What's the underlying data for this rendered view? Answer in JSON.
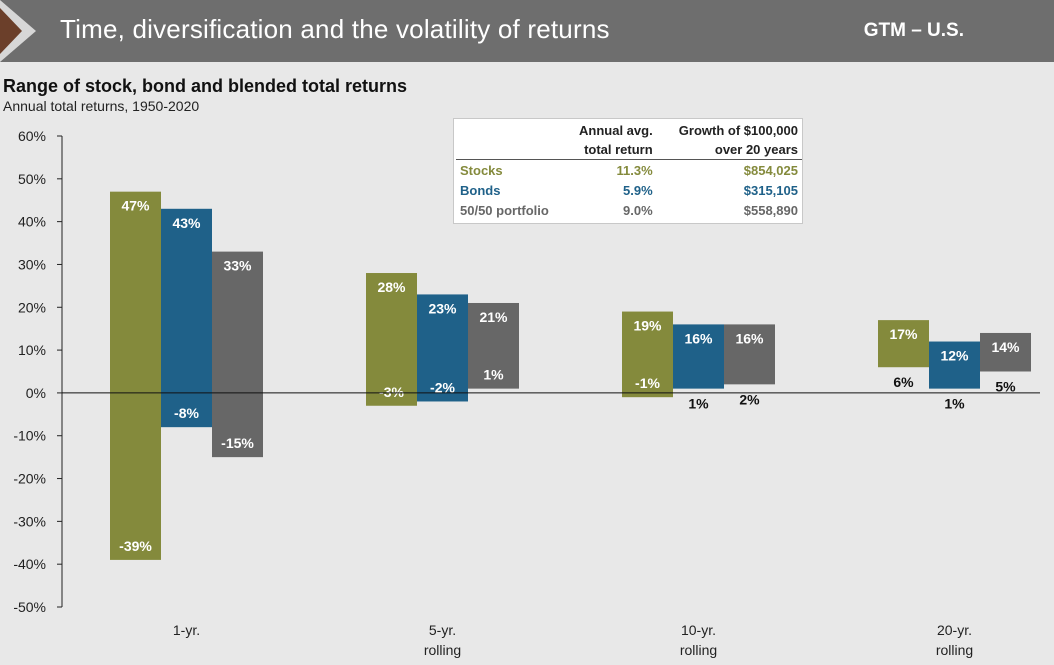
{
  "header": {
    "title": "Time, diversification and the volatility of returns",
    "tag": "GTM – U.S."
  },
  "colors": {
    "stocks": "#848a3c",
    "bonds": "#1f6189",
    "blend": "#676767"
  },
  "legend_table": {
    "col_headers": [
      [
        "Annual avg.",
        "total return"
      ],
      [
        "Growth of $100,000",
        "over 20 years"
      ]
    ],
    "rows": [
      {
        "name": "Stocks",
        "return": "11.3%",
        "growth": "$854,025",
        "color": "#848a3c"
      },
      {
        "name": "Bonds",
        "return": "5.9%",
        "growth": "$315,105",
        "color": "#1f6189"
      },
      {
        "name": "50/50 portfolio",
        "return": "9.0%",
        "growth": "$558,890",
        "color": "#676767"
      }
    ]
  },
  "chart_data": {
    "type": "bar",
    "subtype": "floating-range",
    "title": "Range of stock, bond and blended total returns",
    "subtitle": "Annual total returns, 1950-2020",
    "ylim": [
      -50,
      60
    ],
    "yticks": [
      -50,
      -40,
      -30,
      -20,
      -10,
      0,
      10,
      20,
      30,
      40,
      50,
      60
    ],
    "ytick_labels": [
      "-50%",
      "-40%",
      "-30%",
      "-20%",
      "-10%",
      "0%",
      "10%",
      "20%",
      "30%",
      "40%",
      "50%",
      "60%"
    ],
    "categories": [
      [
        "1-yr."
      ],
      [
        "5-yr.",
        "rolling"
      ],
      [
        "10-yr.",
        "rolling"
      ],
      [
        "20-yr.",
        "rolling"
      ]
    ],
    "series": [
      {
        "name": "Stocks",
        "color": "#848a3c",
        "max": [
          47,
          28,
          19,
          17
        ],
        "min": [
          -39,
          -3,
          -1,
          6
        ],
        "max_labels": [
          "47%",
          "28%",
          "19%",
          "17%"
        ],
        "min_labels": [
          "-39%",
          "-3%",
          "-1%",
          "6%"
        ]
      },
      {
        "name": "Bonds",
        "color": "#1f6189",
        "max": [
          43,
          23,
          16,
          12
        ],
        "min": [
          -8,
          -2,
          1,
          1
        ],
        "max_labels": [
          "43%",
          "23%",
          "16%",
          "12%"
        ],
        "min_labels": [
          "-8%",
          "-2%",
          "1%",
          "1%"
        ]
      },
      {
        "name": "50/50 portfolio",
        "color": "#676767",
        "max": [
          33,
          21,
          16,
          14
        ],
        "min": [
          -15,
          1,
          2,
          5
        ],
        "max_labels": [
          "33%",
          "21%",
          "16%",
          "14%"
        ],
        "min_labels": [
          "-15%",
          "1%",
          "2%",
          "5%"
        ]
      }
    ],
    "grid": false
  }
}
